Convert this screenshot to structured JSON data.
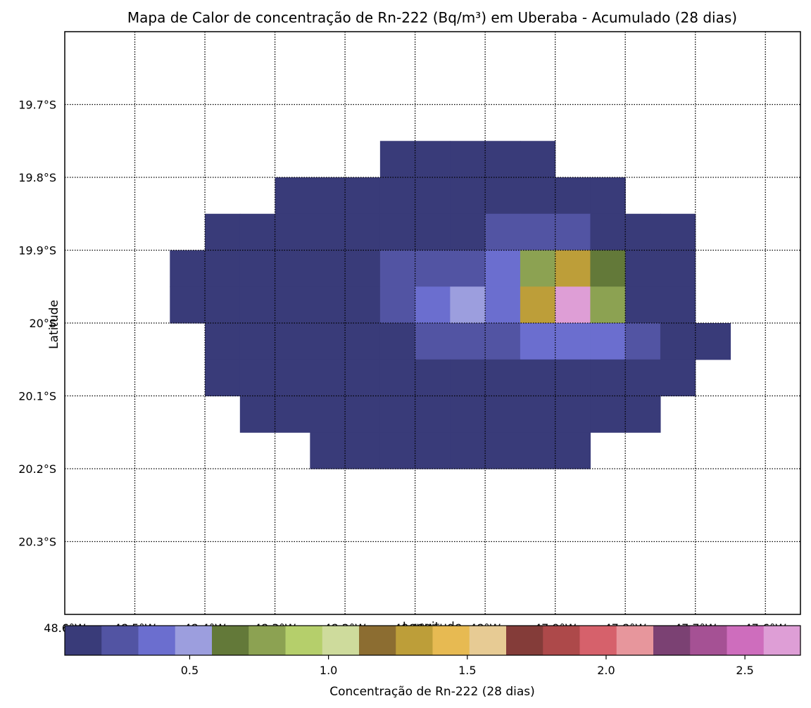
{
  "chart_data": {
    "type": "heatmap",
    "title": "Mapa de Calor de concentração de Rn-222 (Bq/m³) em Uberaba - Acumulado (28 dias)",
    "xlabel": "Longitude",
    "ylabel": "Latitude",
    "xlim": [
      -48.6,
      -47.55
    ],
    "ylim": [
      -20.4,
      -19.6
    ],
    "grid": true,
    "x_ticks": [
      {
        "value": -48.6,
        "label": "48.6°W"
      },
      {
        "value": -48.5,
        "label": "48.5°W"
      },
      {
        "value": -48.4,
        "label": "48.4°W"
      },
      {
        "value": -48.3,
        "label": "48.3°W"
      },
      {
        "value": -48.2,
        "label": "48.2°W"
      },
      {
        "value": -48.1,
        "label": "48.1°W"
      },
      {
        "value": -48.0,
        "label": "48°W"
      },
      {
        "value": -47.9,
        "label": "47.9°W"
      },
      {
        "value": -47.8,
        "label": "47.8°W"
      },
      {
        "value": -47.7,
        "label": "47.7°W"
      },
      {
        "value": -47.6,
        "label": "47.6°W"
      }
    ],
    "y_ticks": [
      {
        "value": -19.7,
        "label": "19.7°S"
      },
      {
        "value": -19.8,
        "label": "19.8°S"
      },
      {
        "value": -19.9,
        "label": "19.9°S"
      },
      {
        "value": -20.0,
        "label": "20°S"
      },
      {
        "value": -20.1,
        "label": "20.1°S"
      },
      {
        "value": -20.2,
        "label": "20.2°S"
      },
      {
        "value": -20.3,
        "label": "20.3°S"
      }
    ],
    "grid_x": [
      -48.425,
      -48.375,
      -48.325,
      -48.275,
      -48.225,
      -48.175,
      -48.125,
      -48.075,
      -48.025,
      -47.975,
      -47.925,
      -47.875,
      -47.825,
      -47.775,
      -47.725,
      -47.675
    ],
    "grid_y": [
      -19.775,
      -19.825,
      -19.875,
      -19.925,
      -19.975,
      -20.025,
      -20.075,
      -20.125,
      -20.175,
      -20.225
    ],
    "values": [
      [
        null,
        null,
        null,
        null,
        null,
        null,
        0.05,
        0.05,
        0.05,
        0.05,
        0.05,
        null,
        null,
        null,
        null,
        null
      ],
      [
        null,
        null,
        null,
        0.05,
        0.05,
        0.05,
        0.05,
        0.05,
        0.05,
        0.05,
        0.05,
        0.05,
        0.05,
        null,
        null,
        null
      ],
      [
        null,
        0.05,
        0.05,
        0.05,
        0.05,
        0.05,
        0.05,
        0.05,
        0.05,
        0.25,
        0.25,
        0.25,
        0.05,
        0.05,
        0.05,
        null
      ],
      [
        0.05,
        0.05,
        0.05,
        0.05,
        0.05,
        0.05,
        0.25,
        0.25,
        0.25,
        0.4,
        0.8,
        1.3,
        0.7,
        0.05,
        0.05,
        null
      ],
      [
        0.05,
        0.05,
        0.05,
        0.05,
        0.05,
        0.05,
        0.25,
        0.4,
        0.55,
        0.4,
        1.3,
        2.7,
        0.8,
        0.05,
        0.05,
        null
      ],
      [
        null,
        0.05,
        0.05,
        0.05,
        0.05,
        0.05,
        0.05,
        0.25,
        0.25,
        0.25,
        0.4,
        0.4,
        0.4,
        0.25,
        0.05,
        0.05
      ],
      [
        null,
        0.05,
        0.05,
        0.05,
        0.05,
        0.05,
        0.05,
        0.05,
        0.05,
        0.05,
        0.05,
        0.05,
        0.05,
        0.05,
        0.05,
        null
      ],
      [
        null,
        null,
        0.05,
        0.05,
        0.05,
        0.05,
        0.05,
        0.05,
        0.05,
        0.05,
        0.05,
        0.05,
        0.05,
        0.05,
        null,
        null
      ],
      [
        null,
        null,
        null,
        null,
        0.05,
        0.05,
        0.05,
        0.05,
        0.05,
        0.05,
        0.05,
        0.05,
        null,
        null,
        null,
        null
      ],
      [
        null,
        null,
        null,
        null,
        null,
        null,
        null,
        null,
        null,
        null,
        null,
        null,
        null,
        null,
        null,
        null
      ]
    ],
    "colorbar": {
      "label": "Concentração de Rn-222 (28 dias)",
      "range": [
        0.05,
        2.7
      ],
      "ticks": [
        {
          "value": 0.5,
          "label": "0.5"
        },
        {
          "value": 1.0,
          "label": "1.0"
        },
        {
          "value": 1.5,
          "label": "1.5"
        },
        {
          "value": 2.0,
          "label": "2.0"
        },
        {
          "value": 2.5,
          "label": "2.5"
        }
      ],
      "colors": [
        "#393b79",
        "#5254a3",
        "#6b6ecf",
        "#9c9ede",
        "#637939",
        "#8ca252",
        "#b5cf6b",
        "#cedb9c",
        "#8c6d31",
        "#bd9e39",
        "#e7ba52",
        "#e7cb94",
        "#843c39",
        "#ad494a",
        "#d6616b",
        "#e7969c",
        "#7b4173",
        "#a55194",
        "#ce6dbd",
        "#de9ed6"
      ]
    }
  }
}
